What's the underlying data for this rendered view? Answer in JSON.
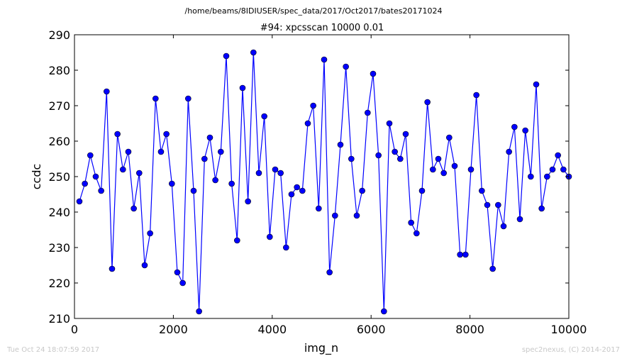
{
  "page_title": "/home/beams/8IDIUSER/spec_data/2017/Oct2017/bates20171024",
  "footer": {
    "timestamp": "Tue Oct 24 18:07:59 2017",
    "credit": "spec2nexus, (C) 2014-2017"
  },
  "chart_data": {
    "type": "line",
    "title": "#94: xpcsscan 10000 0.01",
    "xlabel": "img_n",
    "ylabel": "ccdc",
    "xlim": [
      0,
      10000
    ],
    "ylim": [
      210,
      290
    ],
    "xticks": [
      0,
      2000,
      4000,
      6000,
      8000,
      10000
    ],
    "yticks": [
      210,
      220,
      230,
      240,
      250,
      260,
      270,
      280,
      290
    ],
    "line_color": "#0000ff",
    "marker_color": "#0000ff",
    "marker": "circle",
    "grid": false,
    "series": [
      {
        "x": [
          100,
          210,
          320,
          430,
          540,
          650,
          760,
          870,
          980,
          1090,
          1200,
          1310,
          1420,
          1530,
          1640,
          1750,
          1860,
          1970,
          2080,
          2190,
          2300,
          2410,
          2520,
          2630,
          2740,
          2850,
          2960,
          3070,
          3180,
          3290,
          3400,
          3510,
          3620,
          3730,
          3840,
          3950,
          4060,
          4170,
          4280,
          4390,
          4500,
          4610,
          4720,
          4830,
          4940,
          5050,
          5160,
          5270,
          5380,
          5490,
          5600,
          5710,
          5820,
          5930,
          6040,
          6150,
          6260,
          6370,
          6480,
          6590,
          6700,
          6810,
          6920,
          7030,
          7140,
          7250,
          7360,
          7470,
          7580,
          7690,
          7800,
          7910,
          8020,
          8130,
          8240,
          8350,
          8460,
          8570,
          8680,
          8790,
          8900,
          9010,
          9120,
          9230,
          9340,
          9450,
          9560,
          9670,
          9780,
          9890,
          10000
        ],
        "y": [
          243,
          248,
          256,
          250,
          246,
          274,
          224,
          262,
          252,
          257,
          241,
          251,
          225,
          234,
          272,
          257,
          262,
          248,
          223,
          220,
          272,
          246,
          212,
          255,
          261,
          249,
          257,
          284,
          248,
          232,
          275,
          243,
          285,
          251,
          267,
          233,
          252,
          251,
          230,
          245,
          247,
          246,
          265,
          270,
          241,
          283,
          223,
          239,
          259,
          281,
          255,
          239,
          246,
          268,
          279,
          256,
          212,
          265,
          257,
          255,
          262,
          237,
          234,
          246,
          271,
          252,
          255,
          251,
          261,
          253,
          228,
          228,
          252,
          273,
          246,
          242,
          224,
          242,
          236,
          257,
          264,
          238,
          263,
          250,
          276,
          241,
          250,
          252,
          256,
          252,
          250
        ]
      }
    ]
  }
}
